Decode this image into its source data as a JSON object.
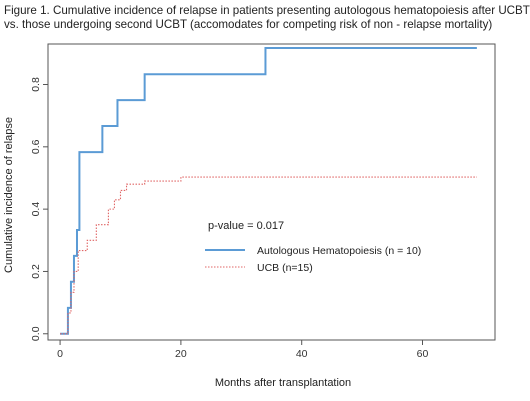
{
  "chart_data": {
    "type": "line",
    "title": "Figure 1. Cumulative incidence of relapse in patients presenting autologous hematopoiesis after UCBT vs. those undergoing second UCBT (accomodates for competing risk of non - relapse mortality)",
    "title_lines": [
      "Figure 1. Cumulative incidence of relapse in patients presenting autologous hematopoiesis after UCBT",
      "vs. those undergoing second UCBT (accomodates for competing risk of non - relapse mortality)"
    ],
    "xlabel": "Months after transplantation",
    "ylabel": "Cumulative incidence of relapse",
    "xlim": [
      -2,
      72
    ],
    "ylim": [
      -0.02,
      0.93
    ],
    "xticks": [
      0,
      20,
      40,
      60
    ],
    "yticks": [
      0.0,
      0.2,
      0.4,
      0.6,
      0.8
    ],
    "ytick_labels": [
      "0.0",
      "0.2",
      "0.4",
      "0.6",
      "0.8"
    ],
    "grid": false,
    "legend_placement": "center-right",
    "annotation": "p-value = 0.017",
    "series": [
      {
        "name": "Autologous Hematopoiesis (n  = 10)",
        "style": "step-solid",
        "color": "#5b9bd5",
        "x": [
          0,
          1.3,
          1.8,
          2.3,
          2.8,
          3.2,
          7.0,
          9.5,
          14.0,
          34.0,
          69
        ],
        "y": [
          0.0,
          0.083,
          0.167,
          0.25,
          0.333,
          0.583,
          0.667,
          0.75,
          0.833,
          0.917,
          0.917
        ]
      },
      {
        "name": "UCB (n=15)",
        "style": "step-dotted",
        "color": "#e06666",
        "x": [
          0,
          1.3,
          1.8,
          2.3,
          3.0,
          4.5,
          6.0,
          8.0,
          9.0,
          10.0,
          11.0,
          14.0,
          20.0,
          69
        ],
        "y": [
          0.0,
          0.067,
          0.133,
          0.2,
          0.267,
          0.3,
          0.35,
          0.4,
          0.43,
          0.46,
          0.48,
          0.49,
          0.503,
          0.503
        ]
      }
    ]
  },
  "colors": {
    "axis": "#555555",
    "series_1": "#5b9bd5",
    "series_2": "#e06666"
  }
}
